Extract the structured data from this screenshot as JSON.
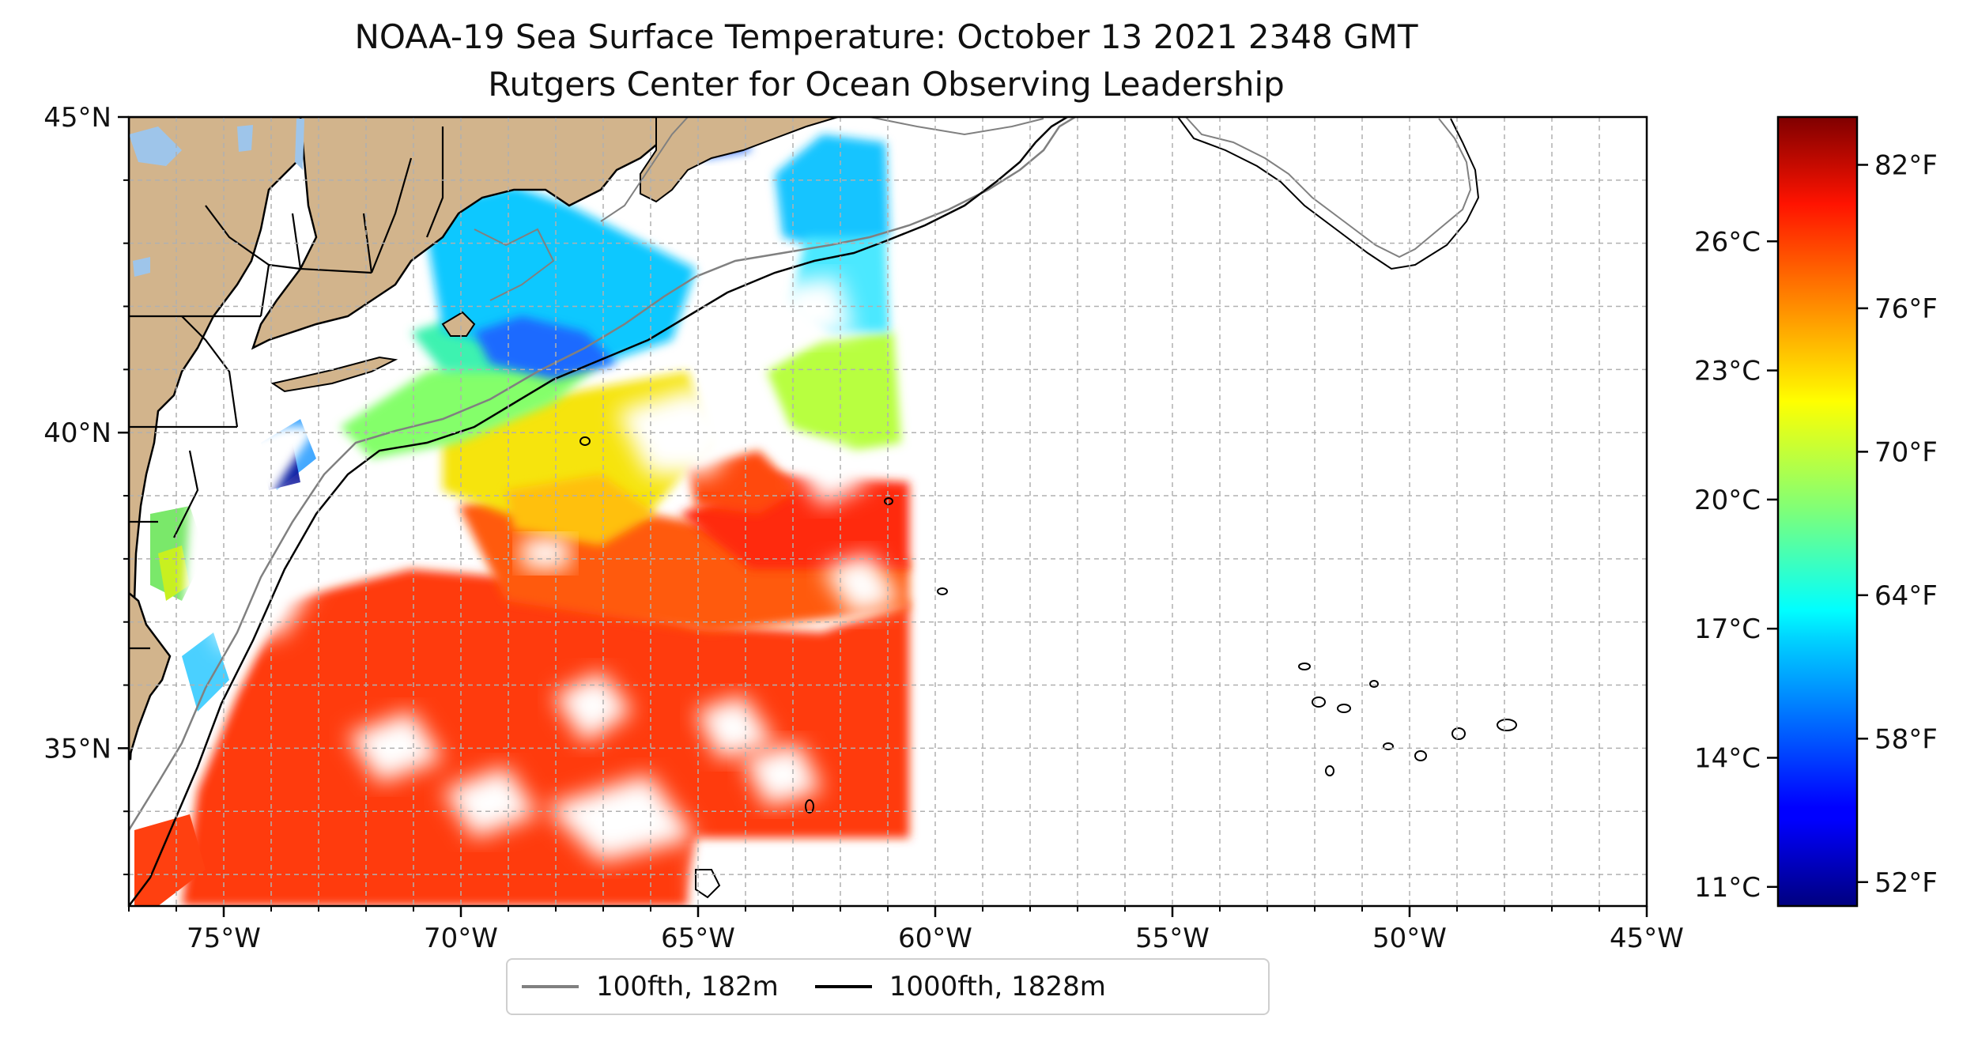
{
  "title_line1": "NOAA-19 Sea Surface Temperature: October 13 2021 2348 GMT",
  "title_line2": "Rutgers Center for Ocean Observing Leadership",
  "map": {
    "lon_range": [
      -77,
      -45
    ],
    "lat_range": [
      32.5,
      45
    ],
    "lon_ticks": [
      {
        "lon": -75,
        "label": "75°W"
      },
      {
        "lon": -70,
        "label": "70°W"
      },
      {
        "lon": -65,
        "label": "65°W"
      },
      {
        "lon": -60,
        "label": "60°W"
      },
      {
        "lon": -55,
        "label": "55°W"
      },
      {
        "lon": -50,
        "label": "50°W"
      },
      {
        "lon": -45,
        "label": "45°W"
      }
    ],
    "lat_ticks": [
      {
        "lat": 45,
        "label": "45°N"
      },
      {
        "lat": 40,
        "label": "40°N"
      },
      {
        "lat": 35,
        "label": "35°N"
      }
    ],
    "grid": true,
    "land_color": "#d2b48c",
    "lake_color": "#9ec5ea"
  },
  "colorbar": {
    "colormap": "jet",
    "celsius_ticks": [
      {
        "value": 11,
        "label": "11°C"
      },
      {
        "value": 14,
        "label": "14°C"
      },
      {
        "value": 17,
        "label": "17°C"
      },
      {
        "value": 20,
        "label": "20°C"
      },
      {
        "value": 23,
        "label": "23°C"
      },
      {
        "value": 26,
        "label": "26°C"
      }
    ],
    "fahrenheit_ticks": [
      {
        "value": 52,
        "label": "52°F"
      },
      {
        "value": 58,
        "label": "58°F"
      },
      {
        "value": 64,
        "label": "64°F"
      },
      {
        "value": 70,
        "label": "70°F"
      },
      {
        "value": 76,
        "label": "76°F"
      },
      {
        "value": 82,
        "label": "82°F"
      }
    ],
    "f_range": [
      51,
      84
    ]
  },
  "legend": {
    "items": [
      {
        "label": "100fth, 182m",
        "color": "#808080"
      },
      {
        "label": "1000fth, 1828m",
        "color": "#000000"
      }
    ]
  }
}
